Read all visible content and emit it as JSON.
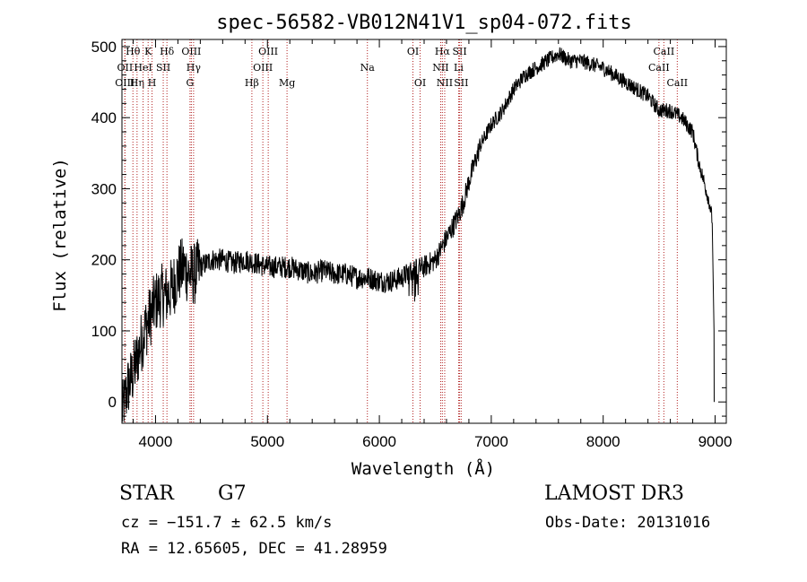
{
  "chart_data": {
    "type": "line",
    "title": "spec-56582-VB012N41V1_sp04-072.fits",
    "xlabel": "Wavelength (Å)",
    "ylabel": "Flux (relative)",
    "xlim": [
      3700,
      9100
    ],
    "ylim": [
      -30,
      510
    ],
    "xticks": [
      4000,
      5000,
      6000,
      7000,
      8000,
      9000
    ],
    "yticks": [
      0,
      100,
      200,
      300,
      400,
      500
    ],
    "grid": false,
    "series": [
      {
        "name": "spectrum",
        "x": [
          3700,
          3750,
          3800,
          3850,
          3900,
          3950,
          4000,
          4050,
          4100,
          4150,
          4200,
          4250,
          4300,
          4350,
          4400,
          4500,
          4600,
          4700,
          4800,
          4900,
          5000,
          5100,
          5200,
          5300,
          5400,
          5500,
          5600,
          5700,
          5800,
          5900,
          6000,
          6100,
          6200,
          6300,
          6400,
          6500,
          6600,
          6700,
          6750,
          6800,
          6900,
          7000,
          7100,
          7200,
          7300,
          7400,
          7500,
          7600,
          7700,
          7800,
          7900,
          8000,
          8100,
          8200,
          8300,
          8400,
          8500,
          8600,
          8700,
          8800,
          8850,
          8900,
          8950,
          8980,
          9000
        ],
        "y": [
          -20,
          20,
          40,
          70,
          100,
          120,
          140,
          150,
          150,
          160,
          180,
          190,
          180,
          180,
          190,
          200,
          200,
          195,
          200,
          195,
          190,
          190,
          190,
          185,
          180,
          185,
          180,
          180,
          175,
          175,
          170,
          170,
          175,
          185,
          190,
          200,
          230,
          260,
          280,
          310,
          360,
          390,
          410,
          440,
          460,
          470,
          480,
          490,
          480,
          480,
          475,
          470,
          460,
          450,
          440,
          430,
          410,
          410,
          400,
          380,
          340,
          310,
          280,
          250,
          0
        ]
      }
    ],
    "line_markers": [
      {
        "label": "Hθ",
        "wavelength": 3798,
        "row": 0
      },
      {
        "label": "OII",
        "wavelength": 3727,
        "row": 1
      },
      {
        "label": "OIII",
        "wavelength": 3726,
        "row": 2
      },
      {
        "label": "Hη",
        "wavelength": 3835,
        "row": 2
      },
      {
        "label": "HeI",
        "wavelength": 3889,
        "row": 1
      },
      {
        "label": "K",
        "wavelength": 3934,
        "row": 0
      },
      {
        "label": "H",
        "wavelength": 3969,
        "row": 2
      },
      {
        "label": "SII",
        "wavelength": 4069,
        "row": 1
      },
      {
        "label": "Hδ",
        "wavelength": 4102,
        "row": 0
      },
      {
        "label": "OIII",
        "wavelength": 4320,
        "row": 0
      },
      {
        "label": "Hγ",
        "wavelength": 4340,
        "row": 1
      },
      {
        "label": "G",
        "wavelength": 4308,
        "row": 2
      },
      {
        "label": "Hβ",
        "wavelength": 4861,
        "row": 2
      },
      {
        "label": "OIII",
        "wavelength": 5007,
        "row": 0
      },
      {
        "label": "OIII",
        "wavelength": 4959,
        "row": 1
      },
      {
        "label": "Mg",
        "wavelength": 5175,
        "row": 2
      },
      {
        "label": "Na",
        "wavelength": 5893,
        "row": 1
      },
      {
        "label": "OI",
        "wavelength": 6300,
        "row": 0
      },
      {
        "label": "OI",
        "wavelength": 6364,
        "row": 2
      },
      {
        "label": "Hα",
        "wavelength": 6563,
        "row": 0
      },
      {
        "label": "SII",
        "wavelength": 6717,
        "row": 0
      },
      {
        "label": "NII",
        "wavelength": 6548,
        "row": 1
      },
      {
        "label": "Li",
        "wavelength": 6708,
        "row": 1
      },
      {
        "label": "NII",
        "wavelength": 6584,
        "row": 2
      },
      {
        "label": "SII",
        "wavelength": 6731,
        "row": 2
      },
      {
        "label": "CaII",
        "wavelength": 8542,
        "row": 0
      },
      {
        "label": "CaII",
        "wavelength": 8498,
        "row": 1
      },
      {
        "label": "CaII",
        "wavelength": 8662,
        "row": 2
      }
    ]
  },
  "info": {
    "class": "STAR",
    "subclass": "G7",
    "survey": "LAMOST DR3",
    "cz": "cz = −151.7 ± 62.5 km/s",
    "obs_date": "Obs-Date: 20131016",
    "coords": "RA =  12.65605, DEC =  41.28959"
  },
  "colors": {
    "axis": "#000000",
    "marker": "#b22222",
    "line": "#000000"
  }
}
